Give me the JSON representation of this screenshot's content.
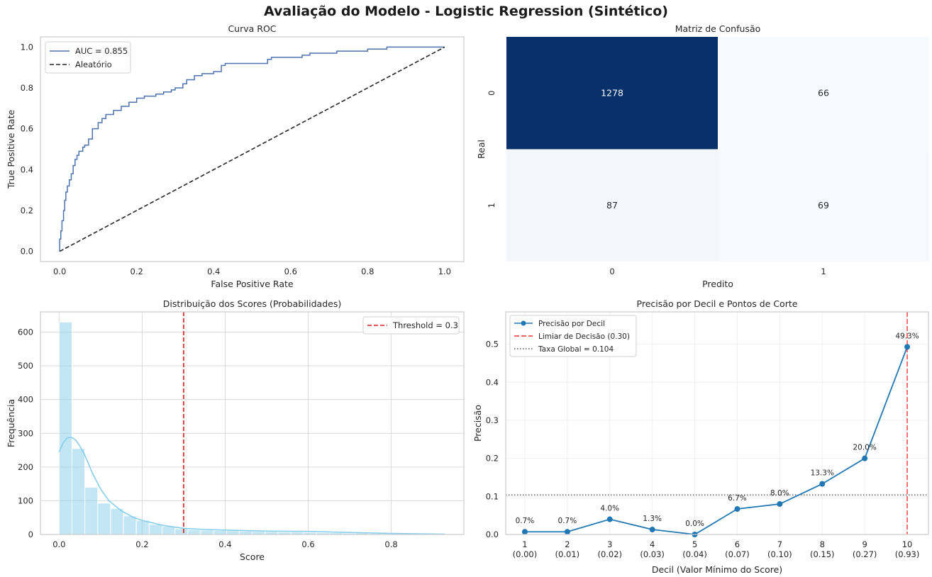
{
  "suptitle": "Avaliação do Modelo - Logistic Regression (Sintético)",
  "chart_data": [
    {
      "type": "line",
      "title": "Curva ROC",
      "xlabel": "False Positive Rate",
      "ylabel": "True Positive Rate",
      "xlim": [
        -0.05,
        1.05
      ],
      "ylim": [
        -0.05,
        1.05
      ],
      "xticks": [
        "0.0",
        "0.2",
        "0.4",
        "0.6",
        "0.8",
        "1.0"
      ],
      "yticks": [
        "0.0",
        "0.2",
        "0.4",
        "0.6",
        "0.8",
        "1.0"
      ],
      "grid": false,
      "legend_position": "top-left",
      "series": [
        {
          "name": "AUC = 0.855",
          "color": "#4c72b0",
          "style": "solid",
          "x": [
            0.0,
            0.0,
            0.003,
            0.006,
            0.01,
            0.013,
            0.016,
            0.02,
            0.025,
            0.03,
            0.035,
            0.04,
            0.045,
            0.05,
            0.06,
            0.065,
            0.075,
            0.085,
            0.1,
            0.11,
            0.12,
            0.14,
            0.16,
            0.18,
            0.2,
            0.22,
            0.25,
            0.27,
            0.29,
            0.3,
            0.32,
            0.33,
            0.35,
            0.37,
            0.4,
            0.42,
            0.43,
            0.5,
            0.54,
            0.55,
            0.6,
            0.63,
            0.65,
            0.72,
            0.8,
            0.85,
            0.9,
            0.95,
            1.0
          ],
          "y": [
            0.0,
            0.06,
            0.1,
            0.15,
            0.2,
            0.25,
            0.29,
            0.32,
            0.35,
            0.38,
            0.42,
            0.45,
            0.47,
            0.49,
            0.51,
            0.52,
            0.55,
            0.6,
            0.63,
            0.65,
            0.67,
            0.69,
            0.71,
            0.73,
            0.75,
            0.76,
            0.77,
            0.78,
            0.79,
            0.8,
            0.82,
            0.84,
            0.86,
            0.87,
            0.88,
            0.91,
            0.92,
            0.92,
            0.94,
            0.95,
            0.95,
            0.96,
            0.97,
            0.98,
            0.99,
            1.0,
            1.0,
            1.0,
            1.0
          ]
        },
        {
          "name": "Aleatório",
          "color": "#262626",
          "style": "dashed",
          "x": [
            0.0,
            1.0
          ],
          "y": [
            0.0,
            1.0
          ]
        }
      ]
    },
    {
      "type": "heatmap",
      "title": "Matriz de Confusão",
      "xlabel": "Predito",
      "ylabel": "Real",
      "x_categories": [
        "0",
        "1"
      ],
      "y_categories": [
        "0",
        "1"
      ],
      "values": [
        [
          1278,
          66
        ],
        [
          87,
          69
        ]
      ],
      "colormap": "Blues"
    },
    {
      "type": "bar",
      "title": "Distribuição dos Scores (Probabilidades)",
      "xlabel": "Score",
      "ylabel": "Frequência",
      "xlim": [
        -0.045,
        0.975
      ],
      "ylim": [
        0,
        660
      ],
      "xticks": [
        "0.0",
        "0.2",
        "0.4",
        "0.6",
        "0.8"
      ],
      "yticks": [
        "0",
        "100",
        "200",
        "300",
        "400",
        "500",
        "600"
      ],
      "grid": true,
      "legend_position": "top-right",
      "bar_color": "#87ceeb",
      "bin_width": 0.031,
      "bin_starts": [
        0.0,
        0.031,
        0.062,
        0.093,
        0.124,
        0.155,
        0.186,
        0.217,
        0.248,
        0.279,
        0.31,
        0.341,
        0.372,
        0.403,
        0.434,
        0.465,
        0.496,
        0.527,
        0.558,
        0.589,
        0.62,
        0.651,
        0.682,
        0.713,
        0.744,
        0.775,
        0.806,
        0.837,
        0.868,
        0.899
      ],
      "counts": [
        630,
        255,
        140,
        93,
        77,
        55,
        42,
        30,
        24,
        17,
        14,
        13,
        12,
        11,
        10,
        9,
        8,
        7,
        7,
        6,
        5,
        5,
        4,
        4,
        3,
        3,
        2,
        2,
        2,
        1
      ],
      "kde": {
        "name": "KDE",
        "color": "#87ceeb",
        "x": [
          0.0,
          0.01,
          0.02,
          0.03,
          0.04,
          0.05,
          0.06,
          0.07,
          0.08,
          0.1,
          0.12,
          0.15,
          0.18,
          0.2,
          0.25,
          0.3,
          0.35,
          0.4,
          0.5,
          0.6,
          0.7,
          0.8,
          0.93
        ],
        "y": [
          245,
          272,
          287,
          288,
          280,
          262,
          240,
          212,
          182,
          135,
          100,
          70,
          50,
          42,
          27,
          18,
          15,
          13,
          10,
          9,
          6,
          3,
          1
        ]
      },
      "threshold": {
        "name": "Threshold = 0.3",
        "value": 0.3,
        "color": "#e41a1c"
      }
    },
    {
      "type": "line",
      "title": "Precisão por Decil e Pontos de Corte",
      "xlabel": "Decil (Valor Mínimo do Score)",
      "ylabel": "Precisão",
      "xlim": [
        0.55,
        10.5
      ],
      "ylim": [
        0,
        0.585
      ],
      "categories": [
        "1\n(0.00)",
        "2\n(0.01)",
        "3\n(0.02)",
        "4\n(0.03)",
        "5\n(0.04)",
        "6\n(0.07)",
        "7\n(0.10)",
        "8\n(0.15)",
        "9\n(0.27)",
        "10\n(0.93)"
      ],
      "yticks": [
        "0.0",
        "0.1",
        "0.2",
        "0.3",
        "0.4",
        "0.5"
      ],
      "grid": true,
      "legend_position": "top-left",
      "series": [
        {
          "name": "Precisão por Decil",
          "color": "#1f77b4",
          "x": [
            1,
            2,
            3,
            4,
            5,
            6,
            7,
            8,
            9,
            10
          ],
          "y": [
            0.007,
            0.007,
            0.04,
            0.013,
            0.0,
            0.067,
            0.08,
            0.133,
            0.2,
            0.493
          ],
          "labels": [
            "0.7%",
            "0.7%",
            "4.0%",
            "1.3%",
            "0.0%",
            "6.7%",
            "8.0%",
            "13.3%",
            "20.0%",
            "49.3%"
          ]
        }
      ],
      "vline": {
        "name": "Limiar de Decisão (0.30)",
        "x": 10,
        "color": "#ff3333"
      },
      "hline": {
        "name": "Taxa Global = 0.104",
        "y": 0.104,
        "color": "#555555"
      }
    }
  ]
}
